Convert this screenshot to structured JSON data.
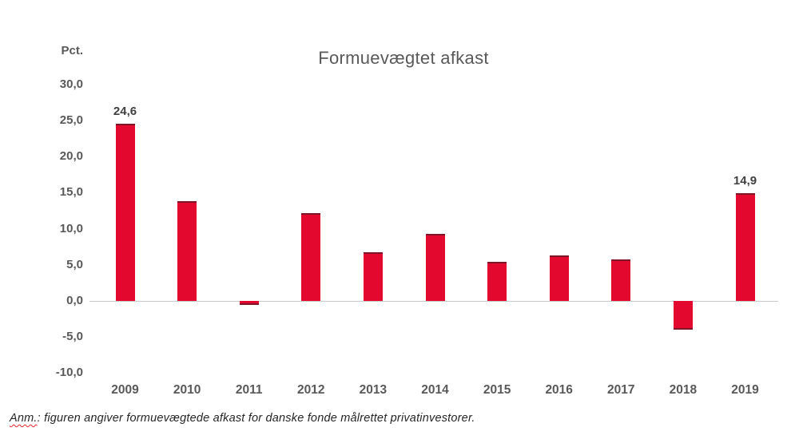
{
  "chart_data": {
    "type": "bar",
    "title": "Formuevægtet afkast",
    "y_axis_title": "Pct.",
    "categories": [
      "2009",
      "2010",
      "2011",
      "2012",
      "2013",
      "2014",
      "2015",
      "2016",
      "2017",
      "2018",
      "2019"
    ],
    "values": [
      24.6,
      13.8,
      -0.6,
      12.2,
      6.7,
      9.3,
      5.4,
      6.3,
      5.7,
      -4.0,
      14.9
    ],
    "data_labels": [
      "24,6",
      "",
      "",
      "",
      "",
      "",
      "",
      "",
      "",
      "",
      "14,9"
    ],
    "y_ticks": [
      {
        "value": 30,
        "label": "30,0"
      },
      {
        "value": 25,
        "label": "25,0"
      },
      {
        "value": 20,
        "label": "20,0"
      },
      {
        "value": 15,
        "label": "15,0"
      },
      {
        "value": 10,
        "label": "10,0"
      },
      {
        "value": 5,
        "label": "5,0"
      },
      {
        "value": 0,
        "label": "0,0"
      },
      {
        "value": -5,
        "label": "-5,0"
      },
      {
        "value": -10,
        "label": "-10,0"
      }
    ],
    "ylim": [
      -10,
      30
    ],
    "grid": false,
    "legend": false,
    "colors": {
      "bar": "#e2082e",
      "bar_edge": "#7e1627",
      "text": "#595959",
      "data_label_text": "#404040",
      "axis_line": "#c9c9c9"
    }
  },
  "footnote": {
    "term": "Anm.",
    "rest": ": figuren angiver formuevægtede afkast for danske fonde målrettet privatinvestorer."
  }
}
